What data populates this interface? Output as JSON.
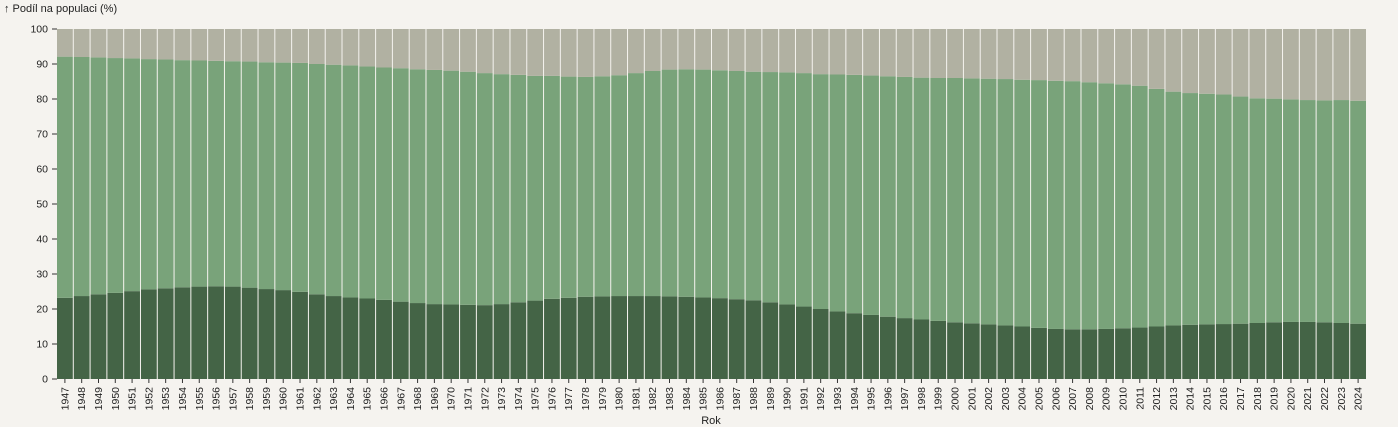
{
  "chart_data": {
    "type": "bar",
    "stacked": true,
    "ylabel": "↑ Podíl na populaci (%)",
    "xlabel": "Rok",
    "ylim": [
      0,
      100
    ],
    "yticks": [
      0,
      10,
      20,
      30,
      40,
      50,
      60,
      70,
      80,
      90,
      100
    ],
    "grid": false,
    "categories": [
      "1947",
      "1948",
      "1949",
      "1950",
      "1951",
      "1952",
      "1953",
      "1954",
      "1955",
      "1956",
      "1957",
      "1958",
      "1959",
      "1960",
      "1961",
      "1962",
      "1963",
      "1964",
      "1965",
      "1966",
      "1967",
      "1968",
      "1969",
      "1970",
      "1971",
      "1972",
      "1973",
      "1974",
      "1975",
      "1976",
      "1977",
      "1978",
      "1979",
      "1980",
      "1981",
      "1982",
      "1983",
      "1984",
      "1985",
      "1986",
      "1987",
      "1988",
      "1989",
      "1990",
      "1991",
      "1992",
      "1993",
      "1994",
      "1995",
      "1996",
      "1997",
      "1998",
      "1999",
      "2000",
      "2001",
      "2002",
      "2003",
      "2004",
      "2005",
      "2006",
      "2007",
      "2008",
      "2009",
      "2010",
      "2011",
      "2012",
      "2013",
      "2014",
      "2015",
      "2016",
      "2017",
      "2018",
      "2019",
      "2020",
      "2021",
      "2022",
      "2023",
      "2024"
    ],
    "series": [
      {
        "color": "#446446",
        "values": [
          23.2,
          23.7,
          24.2,
          24.6,
          25.1,
          25.6,
          25.9,
          26.2,
          26.4,
          26.5,
          26.4,
          26.1,
          25.7,
          25.4,
          24.9,
          24.2,
          23.7,
          23.3,
          23.0,
          22.6,
          22.1,
          21.7,
          21.4,
          21.3,
          21.2,
          21.1,
          21.4,
          21.9,
          22.4,
          22.9,
          23.2,
          23.5,
          23.6,
          23.7,
          23.7,
          23.7,
          23.6,
          23.5,
          23.3,
          23.1,
          22.8,
          22.5,
          21.9,
          21.3,
          20.7,
          20.0,
          19.3,
          18.8,
          18.3,
          17.8,
          17.4,
          17.0,
          16.6,
          16.2,
          15.9,
          15.6,
          15.3,
          15.0,
          14.6,
          14.3,
          14.2,
          14.2,
          14.3,
          14.5,
          14.7,
          15.0,
          15.3,
          15.5,
          15.6,
          15.7,
          15.8,
          16.0,
          16.2,
          16.3,
          16.3,
          16.2,
          16.0,
          15.8
        ]
      },
      {
        "color": "#79a37a",
        "values": [
          68.9,
          68.3,
          67.7,
          67.1,
          66.5,
          65.8,
          65.4,
          64.9,
          64.6,
          64.4,
          64.4,
          64.6,
          64.8,
          65.0,
          65.4,
          65.8,
          66.1,
          66.3,
          66.3,
          66.4,
          66.7,
          66.8,
          66.9,
          66.8,
          66.6,
          66.3,
          65.7,
          65.0,
          64.2,
          63.7,
          63.2,
          62.8,
          62.9,
          63.1,
          63.7,
          64.3,
          64.8,
          65.0,
          65.1,
          65.1,
          65.2,
          65.3,
          65.8,
          66.3,
          66.7,
          67.1,
          67.7,
          68.1,
          68.4,
          68.7,
          68.9,
          69.1,
          69.4,
          69.8,
          70.0,
          70.2,
          70.4,
          70.5,
          70.8,
          70.9,
          70.9,
          70.6,
          70.2,
          69.7,
          69.1,
          67.9,
          66.8,
          66.2,
          65.9,
          65.6,
          64.9,
          64.2,
          63.9,
          63.6,
          63.4,
          63.4,
          63.7,
          63.7
        ]
      },
      {
        "color": "#b1b1a2",
        "values": [
          7.9,
          8.0,
          8.1,
          8.3,
          8.4,
          8.6,
          8.7,
          8.9,
          9.0,
          9.1,
          9.2,
          9.3,
          9.5,
          9.6,
          9.7,
          10.0,
          10.2,
          10.4,
          10.7,
          11.0,
          11.2,
          11.5,
          11.7,
          11.9,
          12.2,
          12.6,
          12.9,
          13.1,
          13.4,
          13.4,
          13.6,
          13.7,
          13.5,
          13.2,
          12.6,
          12.0,
          11.6,
          11.5,
          11.6,
          11.8,
          12.0,
          12.2,
          12.3,
          12.4,
          12.6,
          12.9,
          13.0,
          13.1,
          13.3,
          13.5,
          13.7,
          13.9,
          14.0,
          14.0,
          14.1,
          14.2,
          14.3,
          14.5,
          14.6,
          14.8,
          14.9,
          15.2,
          15.5,
          15.8,
          16.2,
          17.1,
          17.9,
          18.3,
          18.5,
          18.7,
          19.3,
          19.8,
          19.9,
          20.1,
          20.3,
          20.4,
          20.3,
          20.5
        ]
      }
    ]
  }
}
